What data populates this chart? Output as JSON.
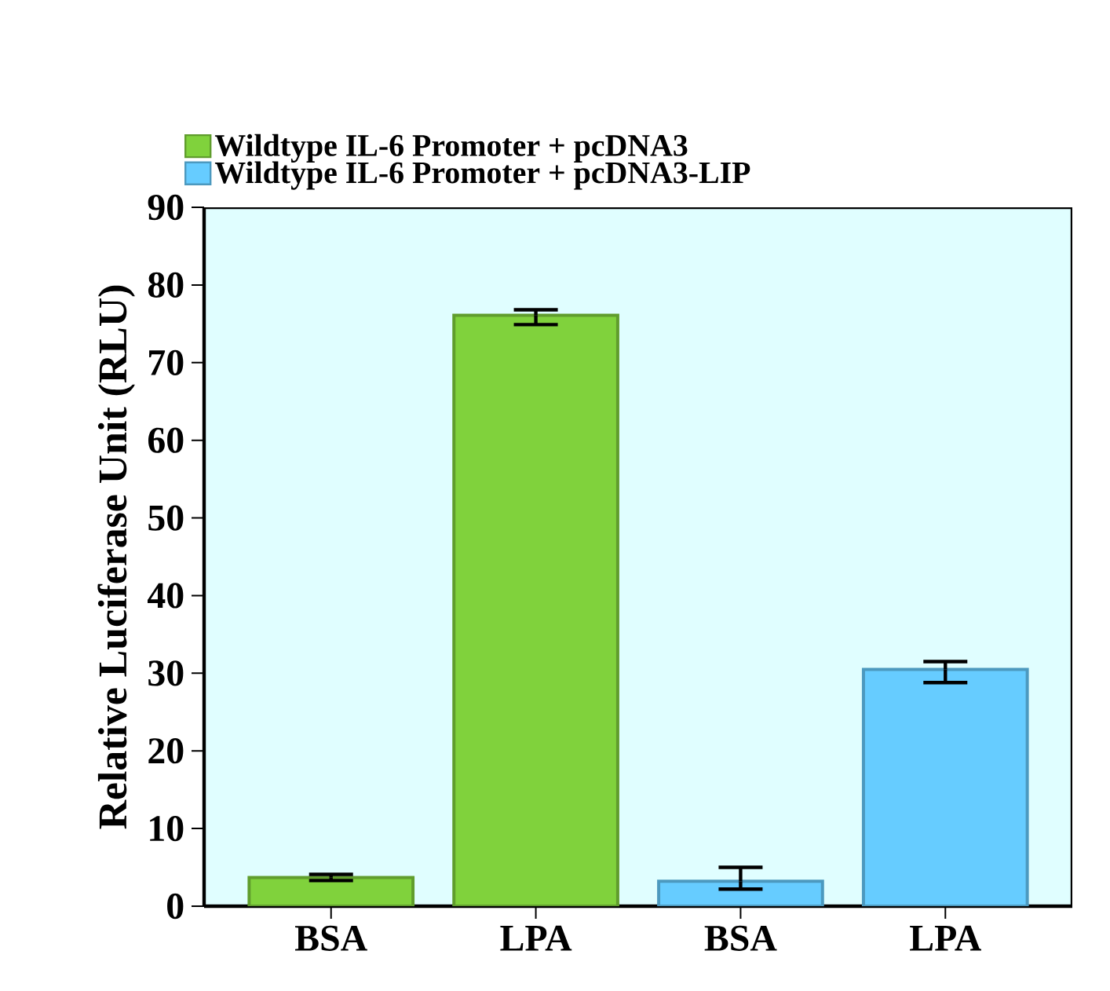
{
  "chart_data": {
    "type": "bar",
    "ylabel": "Relative Luciferase Unit (RLU)",
    "categories": [
      "BSA",
      "LPA",
      "BSA",
      "LPA"
    ],
    "series": [
      {
        "name": "Wildtype IL-6 Promoter + pcDNA3",
        "color": "#80d23c",
        "values": [
          3.7,
          76.1,
          null,
          null
        ],
        "errors": [
          [
            3.3,
            4.1
          ],
          [
            74.9,
            76.8
          ],
          null,
          null
        ]
      },
      {
        "name": "Wildtype IL-6 Promoter + pcDNA3-LIP",
        "color": "#66ccff",
        "values": [
          null,
          null,
          3.2,
          30.5
        ],
        "errors": [
          null,
          null,
          [
            2.2,
            5.0
          ],
          [
            28.8,
            31.5
          ]
        ]
      }
    ],
    "ylim": [
      0,
      90
    ],
    "yticks": [
      0,
      10,
      20,
      30,
      40,
      50,
      60,
      70,
      80,
      90
    ],
    "grid": false,
    "legend": "top left"
  }
}
